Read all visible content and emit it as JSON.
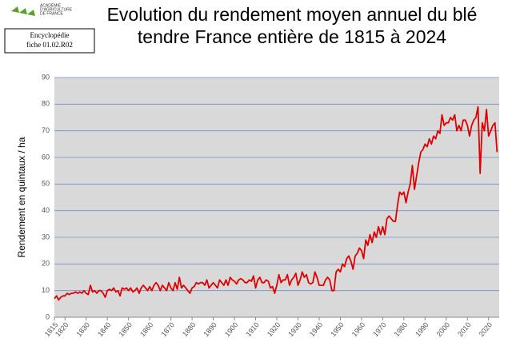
{
  "header": {
    "logo": [
      "ACADÉMIE",
      "D'AGRICULTURE",
      "DE FRANCE"
    ],
    "badge": [
      "Encyclopédie",
      "fiche 01.02.R02"
    ]
  },
  "chart_data": {
    "type": "line",
    "title": [
      "Evolution du rendement moyen annuel du blé",
      "tendre France entière de 1815 à 2024"
    ],
    "y_label": "Rendement en quintaux / ha",
    "x": [
      1815,
      1816,
      1817,
      1818,
      1819,
      1820,
      1821,
      1822,
      1823,
      1824,
      1825,
      1826,
      1827,
      1828,
      1829,
      1830,
      1831,
      1832,
      1833,
      1834,
      1835,
      1836,
      1837,
      1838,
      1839,
      1840,
      1841,
      1842,
      1843,
      1844,
      1845,
      1846,
      1847,
      1848,
      1849,
      1850,
      1851,
      1852,
      1853,
      1854,
      1855,
      1856,
      1857,
      1858,
      1859,
      1860,
      1861,
      1862,
      1863,
      1864,
      1865,
      1866,
      1867,
      1868,
      1869,
      1870,
      1871,
      1872,
      1873,
      1874,
      1875,
      1876,
      1877,
      1878,
      1879,
      1880,
      1881,
      1882,
      1883,
      1884,
      1885,
      1886,
      1887,
      1888,
      1889,
      1890,
      1891,
      1892,
      1893,
      1894,
      1895,
      1896,
      1897,
      1898,
      1899,
      1900,
      1901,
      1902,
      1903,
      1904,
      1905,
      1906,
      1907,
      1908,
      1909,
      1910,
      1911,
      1912,
      1913,
      1914,
      1915,
      1916,
      1917,
      1918,
      1919,
      1920,
      1921,
      1922,
      1923,
      1924,
      1925,
      1926,
      1927,
      1928,
      1929,
      1930,
      1931,
      1932,
      1933,
      1934,
      1935,
      1936,
      1937,
      1938,
      1939,
      1940,
      1941,
      1942,
      1943,
      1944,
      1945,
      1946,
      1947,
      1948,
      1949,
      1950,
      1951,
      1952,
      1953,
      1954,
      1955,
      1956,
      1957,
      1958,
      1959,
      1960,
      1961,
      1962,
      1963,
      1964,
      1965,
      1966,
      1967,
      1968,
      1969,
      1970,
      1971,
      1972,
      1973,
      1974,
      1975,
      1976,
      1977,
      1978,
      1979,
      1980,
      1981,
      1982,
      1983,
      1984,
      1985,
      1986,
      1987,
      1988,
      1989,
      1990,
      1991,
      1992,
      1993,
      1994,
      1995,
      1996,
      1997,
      1998,
      1999,
      2000,
      2001,
      2002,
      2003,
      2004,
      2005,
      2006,
      2007,
      2008,
      2009,
      2010,
      2011,
      2012,
      2013,
      2014,
      2015,
      2016,
      2017,
      2018,
      2019,
      2020,
      2021,
      2022,
      2023,
      2024
    ],
    "series": [
      {
        "color": "#e00000",
        "values": [
          7,
          8,
          6.5,
          7.5,
          8,
          8,
          9,
          8.5,
          9,
          9,
          9.5,
          9,
          9.5,
          9,
          10,
          9,
          8.5,
          12,
          9.5,
          10,
          9,
          10,
          10,
          9,
          7.5,
          10,
          10.5,
          10,
          11,
          9.5,
          10,
          8,
          11,
          10.5,
          11,
          10,
          11,
          9.5,
          10,
          11,
          9,
          11,
          12,
          11,
          10,
          11.5,
          10,
          12,
          13,
          12,
          10,
          12,
          11,
          10,
          13,
          11,
          10,
          13,
          10.5,
          15,
          11,
          12,
          11,
          10,
          9,
          11,
          11.5,
          13,
          12.5,
          13,
          13,
          12,
          14,
          11,
          12,
          13,
          12,
          11,
          14,
          13,
          12,
          14,
          12,
          15,
          14,
          13.5,
          12.5,
          14,
          14.5,
          14,
          13,
          13,
          14,
          13.5,
          15.5,
          11,
          14,
          15,
          13,
          13,
          14,
          13.5,
          11,
          11.5,
          9,
          12,
          16,
          13,
          14,
          14,
          16,
          12,
          14,
          15,
          16.5,
          12,
          14,
          17,
          15,
          16,
          13,
          12.5,
          13,
          17,
          15,
          12,
          12,
          12,
          14,
          15,
          14,
          10,
          10,
          17,
          18,
          17,
          20,
          19,
          22,
          23,
          21,
          18,
          23,
          24,
          26,
          25,
          22,
          29,
          27,
          31,
          28,
          32,
          30,
          34,
          31,
          34,
          31,
          37,
          38,
          37,
          36,
          36,
          42,
          47,
          46,
          47,
          43,
          47,
          50,
          57,
          48,
          53,
          58,
          62,
          63,
          65,
          64,
          67,
          65,
          68,
          67,
          70,
          69,
          76,
          72,
          73,
          73,
          75,
          74,
          76,
          70,
          72,
          70,
          74,
          74,
          72,
          68,
          72,
          74,
          75,
          79,
          54,
          73,
          70,
          78,
          68,
          70,
          72,
          73,
          62
        ]
      }
    ],
    "xlim": [
      1815,
      2025
    ],
    "xticks": [
      1815,
      1820,
      1830,
      1840,
      1850,
      1860,
      1870,
      1880,
      1890,
      1900,
      1910,
      1920,
      1930,
      1940,
      1950,
      1960,
      1970,
      1980,
      1990,
      2000,
      2010,
      2020
    ],
    "ylim": [
      0,
      90
    ],
    "yticks": [
      0,
      10,
      20,
      30,
      40,
      50,
      60,
      70,
      80,
      90
    ],
    "grid": true
  }
}
